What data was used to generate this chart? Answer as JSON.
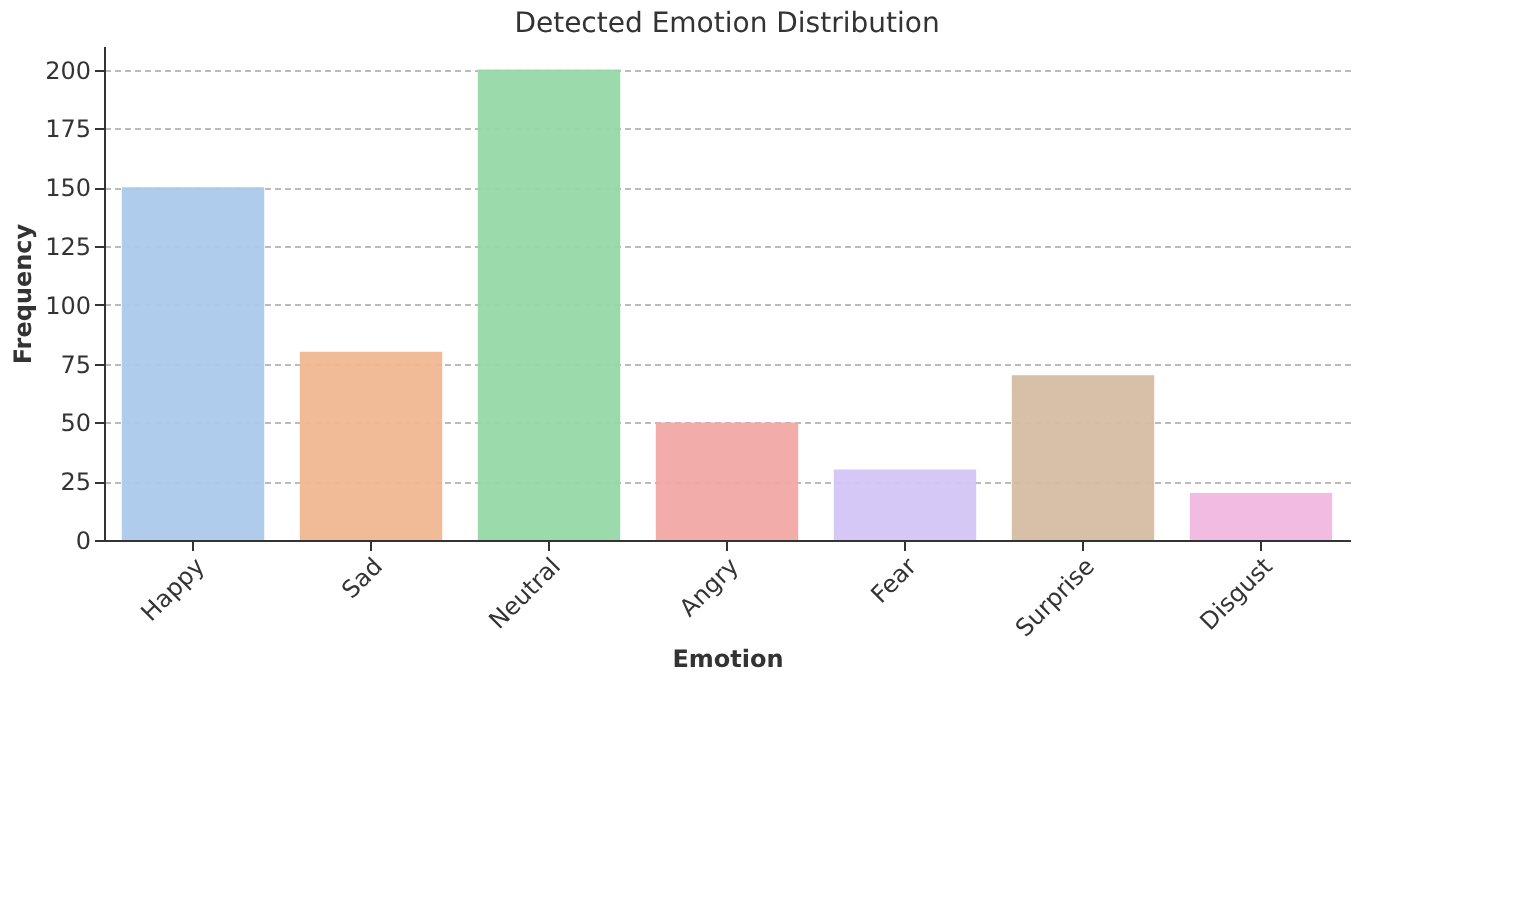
{
  "chart_data": {
    "type": "bar",
    "title": "Detected Emotion Distribution",
    "xlabel": "Emotion",
    "ylabel": "Frequency",
    "categories": [
      "Happy",
      "Sad",
      "Neutral",
      "Angry",
      "Fear",
      "Surprise",
      "Disgust"
    ],
    "values": [
      150,
      80,
      200,
      50,
      30,
      70,
      20
    ],
    "colors": [
      "#abc9ec",
      "#f0b791",
      "#96d9a6",
      "#f1a9a5",
      "#d3c5f7",
      "#d5bca3",
      "#f0b7e0"
    ],
    "ylim": [
      0,
      210
    ],
    "yticks": [
      0,
      25,
      50,
      75,
      100,
      125,
      150,
      175,
      200
    ],
    "grid": "y",
    "legend": false
  }
}
